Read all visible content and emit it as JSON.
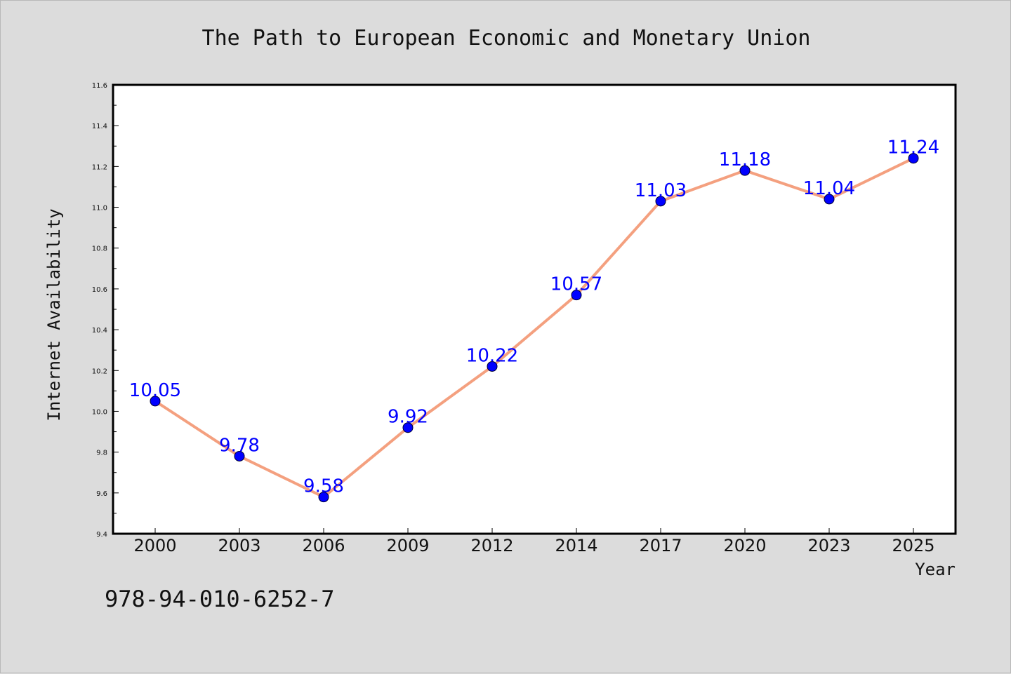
{
  "chart_data": {
    "type": "line",
    "title": "The Path to European Economic and Monetary Union",
    "xlabel": "Year",
    "ylabel": "Internet Availability",
    "categories": [
      "2000",
      "2003",
      "2006",
      "2009",
      "2012",
      "2014",
      "2017",
      "2020",
      "2023",
      "2025"
    ],
    "series": [
      {
        "values": [
          10.05,
          9.78,
          9.58,
          9.92,
          10.22,
          10.57,
          11.03,
          11.18,
          11.04,
          11.24
        ],
        "data_labels": [
          "10.05",
          "9.78",
          "9.58",
          "9.92",
          "10.22",
          "10.57",
          "11.03",
          "11.18",
          "11.04",
          "11.24"
        ],
        "line_color": "#f4a07f",
        "marker_color": "#0000ff"
      }
    ],
    "ylim": [
      9.4,
      11.6
    ],
    "yticks": [
      "9.4",
      "9.6",
      "9.8",
      "10.0",
      "10.2",
      "10.4",
      "10.6",
      "10.8",
      "11.0",
      "11.2",
      "11.4",
      "11.6"
    ],
    "grid": false,
    "legend": "none"
  },
  "annotation": {
    "isbn": "978-94-010-6252-7"
  },
  "colors": {
    "background": "#dcdcdc",
    "plot_background": "#ffffff",
    "line": "#f4a07f",
    "marker": "#0000ff",
    "label": "#0000ff"
  }
}
